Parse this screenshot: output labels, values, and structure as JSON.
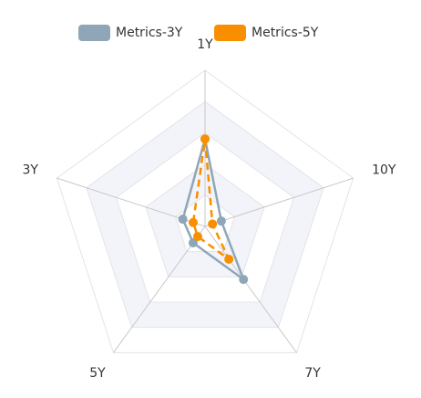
{
  "chart_data": {
    "type": "radar",
    "categories": [
      "1Y",
      "10Y",
      "7Y",
      "5Y",
      "3Y"
    ],
    "rlim": [
      0,
      100
    ],
    "rticks": [
      20,
      40,
      60,
      80,
      100
    ],
    "grid": true,
    "legend": "top",
    "series": [
      {
        "name": "Metrics-3Y",
        "color": "#8ea6b7",
        "line_style": "solid",
        "values": [
          56,
          11,
          42,
          13,
          15
        ]
      },
      {
        "name": "Metrics-5Y",
        "color": "#f98f00",
        "line_style": "dashed",
        "values": [
          56,
          5,
          26,
          8,
          8
        ]
      }
    ]
  }
}
